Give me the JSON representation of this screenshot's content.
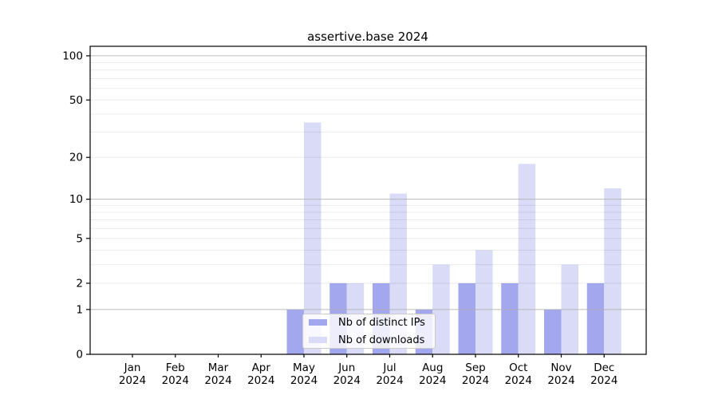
{
  "title": "assertive.base 2024",
  "chart_data": {
    "type": "bar",
    "title": "assertive.base 2024",
    "categories": [
      "Jan",
      "Feb",
      "Mar",
      "Apr",
      "May",
      "Jun",
      "Jul",
      "Aug",
      "Sep",
      "Oct",
      "Nov",
      "Dec"
    ],
    "year": "2024",
    "series": [
      {
        "name": "Nb of distinct IPs",
        "color": "#a3a7ee",
        "values": [
          0,
          0,
          0,
          0,
          1,
          2,
          2,
          1,
          2,
          2,
          1,
          2
        ]
      },
      {
        "name": "Nb of downloads",
        "color": "#d9dbf7",
        "values": [
          0,
          0,
          0,
          0,
          35,
          2,
          11,
          3,
          4,
          18,
          3,
          12
        ]
      }
    ],
    "y_scale": "log10(1+v)",
    "y_ticks": [
      0,
      1,
      2,
      5,
      10,
      20,
      50,
      100
    ],
    "y_major_gridlines": [
      1,
      10,
      100
    ],
    "ylim": [
      0,
      116
    ],
    "xlabel": "",
    "ylabel": "",
    "grid": true,
    "legend_position": "lower-center-inside",
    "colors": {
      "axis": "#000000",
      "major_grid": "#b0b0b0",
      "minor_grid_alpha": 0.08,
      "background": "#ffffff"
    }
  }
}
